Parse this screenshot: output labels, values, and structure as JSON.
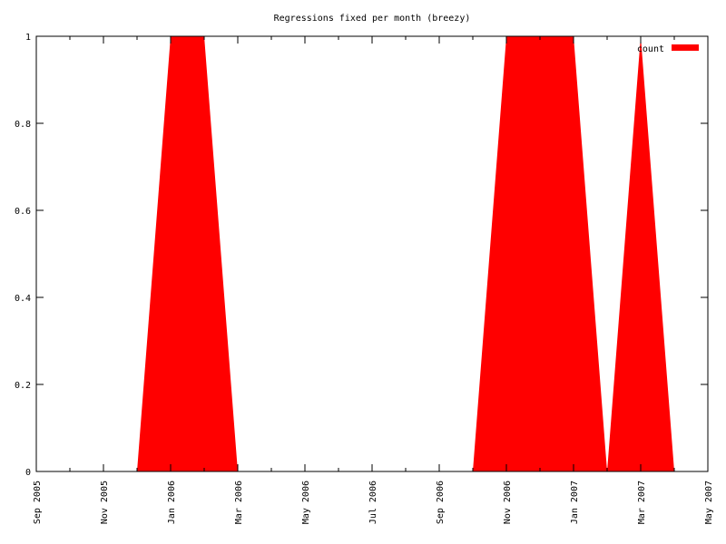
{
  "chart_data": {
    "type": "area",
    "title": "Regressions fixed per month (breezy)",
    "xlabel": "",
    "ylabel": "",
    "x_ticks": [
      "Sep 2005",
      "Nov 2005",
      "Jan 2006",
      "Mar 2006",
      "May 2006",
      "Jul 2006",
      "Sep 2006",
      "Nov 2006",
      "Jan 2007",
      "Mar 2007",
      "May 2007"
    ],
    "y_ticks": [
      "0",
      "0.2",
      "0.4",
      "0.6",
      "0.8",
      "1"
    ],
    "xlim": [
      "2005-09-01",
      "2007-05-01"
    ],
    "ylim": [
      0,
      1
    ],
    "grid": false,
    "legend": "top-right",
    "series": [
      {
        "name": "count",
        "color": "#ff0000",
        "points": [
          {
            "x": "2005-12-01",
            "y": 0
          },
          {
            "x": "2006-01-01",
            "y": 1
          },
          {
            "x": "2006-02-01",
            "y": 1
          },
          {
            "x": "2006-03-01",
            "y": 0
          },
          {
            "x": "2006-10-01",
            "y": 0
          },
          {
            "x": "2006-11-01",
            "y": 1
          },
          {
            "x": "2006-12-01",
            "y": 1
          },
          {
            "x": "2007-01-01",
            "y": 1
          },
          {
            "x": "2007-02-01",
            "y": 0
          },
          {
            "x": "2007-03-01",
            "y": 1
          },
          {
            "x": "2007-04-01",
            "y": 0
          }
        ]
      }
    ]
  }
}
